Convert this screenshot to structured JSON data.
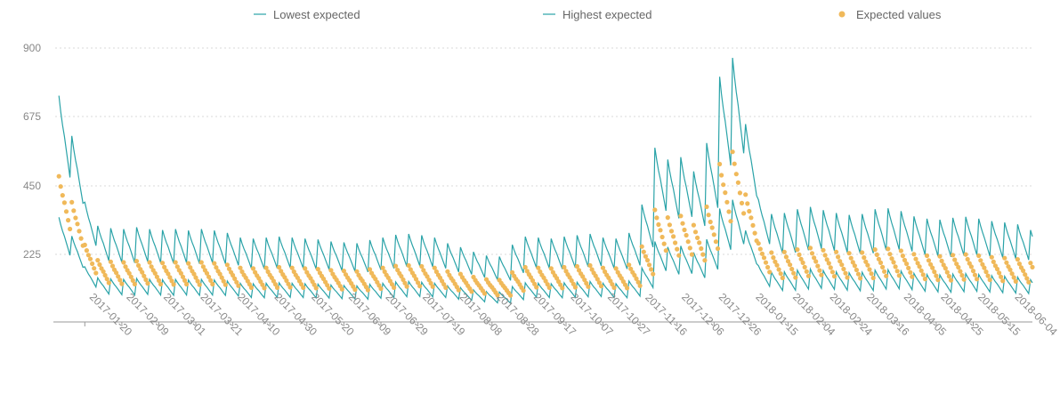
{
  "chart_data": {
    "type": "line",
    "legend": [
      {
        "name": "Lowest expected",
        "marker": "line",
        "color": "#2aa3a8"
      },
      {
        "name": "Highest expected",
        "marker": "line",
        "color": "#2aa3a8"
      },
      {
        "name": "Expected values",
        "marker": "dot",
        "color": "#f0b95a"
      }
    ],
    "legend_position": "top",
    "y_ticks": [
      "225",
      "450",
      "675",
      "900"
    ],
    "ylim": [
      0,
      900
    ],
    "xlim": [
      "2017-01-04",
      "2018-06-16"
    ],
    "x_ticks": [
      "2017-01-20",
      "2017-02-09",
      "2017-03-01",
      "2017-03-21",
      "2017-04-10",
      "2017-04-30",
      "2017-05-20",
      "2017-06-09",
      "2017-06-29",
      "2017-07-19",
      "2017-08-08",
      "2017-08-28",
      "2017-09-17",
      "2017-10-07",
      "2017-10-27",
      "2017-11-16",
      "2017-12-06",
      "2017-12-26",
      "2018-01-15",
      "2018-02-04",
      "2018-02-24",
      "2018-03-16",
      "2018-04-05",
      "2018-04-25",
      "2018-05-15",
      "2018-06-04"
    ],
    "grid": "horizontal dotted",
    "seasonality": "weekly",
    "weekly_pattern": [
      1.0,
      0.93,
      0.87,
      0.82,
      0.76,
      0.7,
      0.64
    ],
    "series_ratios": {
      "lowest_expected": 0.72,
      "expected_values": 1.0,
      "highest_expected": 1.55
    },
    "weekly_peak_expected_values": [
      {
        "x": "2017-01-06",
        "y": 480
      },
      {
        "x": "2017-01-13",
        "y": 395
      },
      {
        "x": "2017-01-20",
        "y": 255
      },
      {
        "x": "2017-01-27",
        "y": 205
      },
      {
        "x": "2017-02-03",
        "y": 200
      },
      {
        "x": "2017-02-10",
        "y": 198
      },
      {
        "x": "2017-02-17",
        "y": 202
      },
      {
        "x": "2017-02-24",
        "y": 198
      },
      {
        "x": "2017-03-03",
        "y": 196
      },
      {
        "x": "2017-03-10",
        "y": 198
      },
      {
        "x": "2017-03-17",
        "y": 195
      },
      {
        "x": "2017-03-24",
        "y": 198
      },
      {
        "x": "2017-03-31",
        "y": 195
      },
      {
        "x": "2017-04-07",
        "y": 190
      },
      {
        "x": "2017-04-14",
        "y": 180
      },
      {
        "x": "2017-04-21",
        "y": 178
      },
      {
        "x": "2017-04-28",
        "y": 180
      },
      {
        "x": "2017-05-05",
        "y": 182
      },
      {
        "x": "2017-05-12",
        "y": 180
      },
      {
        "x": "2017-05-19",
        "y": 178
      },
      {
        "x": "2017-05-26",
        "y": 176
      },
      {
        "x": "2017-06-02",
        "y": 172
      },
      {
        "x": "2017-06-09",
        "y": 170
      },
      {
        "x": "2017-06-16",
        "y": 168
      },
      {
        "x": "2017-06-23",
        "y": 175
      },
      {
        "x": "2017-06-30",
        "y": 180
      },
      {
        "x": "2017-07-07",
        "y": 186
      },
      {
        "x": "2017-07-14",
        "y": 188
      },
      {
        "x": "2017-07-21",
        "y": 185
      },
      {
        "x": "2017-07-28",
        "y": 180
      },
      {
        "x": "2017-08-04",
        "y": 168
      },
      {
        "x": "2017-08-11",
        "y": 160
      },
      {
        "x": "2017-08-18",
        "y": 150
      },
      {
        "x": "2017-08-25",
        "y": 142
      },
      {
        "x": "2017-09-01",
        "y": 140
      },
      {
        "x": "2017-09-08",
        "y": 165
      },
      {
        "x": "2017-09-15",
        "y": 182
      },
      {
        "x": "2017-09-22",
        "y": 180
      },
      {
        "x": "2017-09-29",
        "y": 178
      },
      {
        "x": "2017-10-06",
        "y": 182
      },
      {
        "x": "2017-10-13",
        "y": 185
      },
      {
        "x": "2017-10-20",
        "y": 188
      },
      {
        "x": "2017-10-27",
        "y": 180
      },
      {
        "x": "2017-11-03",
        "y": 178
      },
      {
        "x": "2017-11-10",
        "y": 190
      },
      {
        "x": "2017-11-17",
        "y": 250
      },
      {
        "x": "2017-11-24",
        "y": 370
      },
      {
        "x": "2017-12-01",
        "y": 345
      },
      {
        "x": "2017-12-08",
        "y": 350
      },
      {
        "x": "2017-12-15",
        "y": 320
      },
      {
        "x": "2017-12-22",
        "y": 380
      },
      {
        "x": "2017-12-29",
        "y": 520
      },
      {
        "x": "2018-01-05",
        "y": 560
      },
      {
        "x": "2018-01-12",
        "y": 420
      },
      {
        "x": "2018-01-19",
        "y": 260
      },
      {
        "x": "2018-01-26",
        "y": 230
      },
      {
        "x": "2018-02-02",
        "y": 232
      },
      {
        "x": "2018-02-09",
        "y": 240
      },
      {
        "x": "2018-02-16",
        "y": 245
      },
      {
        "x": "2018-02-23",
        "y": 238
      },
      {
        "x": "2018-03-02",
        "y": 232
      },
      {
        "x": "2018-03-09",
        "y": 228
      },
      {
        "x": "2018-03-16",
        "y": 230
      },
      {
        "x": "2018-03-23",
        "y": 240
      },
      {
        "x": "2018-03-30",
        "y": 242
      },
      {
        "x": "2018-04-06",
        "y": 236
      },
      {
        "x": "2018-04-13",
        "y": 225
      },
      {
        "x": "2018-04-20",
        "y": 220
      },
      {
        "x": "2018-04-27",
        "y": 218
      },
      {
        "x": "2018-05-04",
        "y": 222
      },
      {
        "x": "2018-05-11",
        "y": 224
      },
      {
        "x": "2018-05-18",
        "y": 220
      },
      {
        "x": "2018-05-25",
        "y": 215
      },
      {
        "x": "2018-06-01",
        "y": 212
      },
      {
        "x": "2018-06-08",
        "y": 208
      },
      {
        "x": "2018-06-15",
        "y": 196
      }
    ]
  }
}
